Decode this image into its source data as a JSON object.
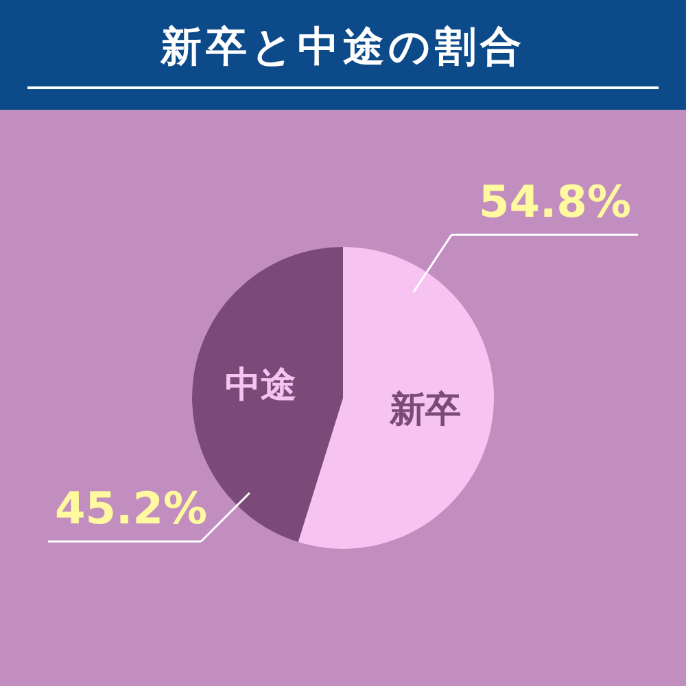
{
  "chart_data": {
    "type": "pie",
    "title": "新卒と中途の割合",
    "categories": [
      "新卒",
      "中途"
    ],
    "values": [
      54.8,
      45.2
    ],
    "colors": [
      "#f7c4f2",
      "#7b4a79"
    ],
    "value_labels": [
      "54.8%",
      "45.2%"
    ]
  }
}
